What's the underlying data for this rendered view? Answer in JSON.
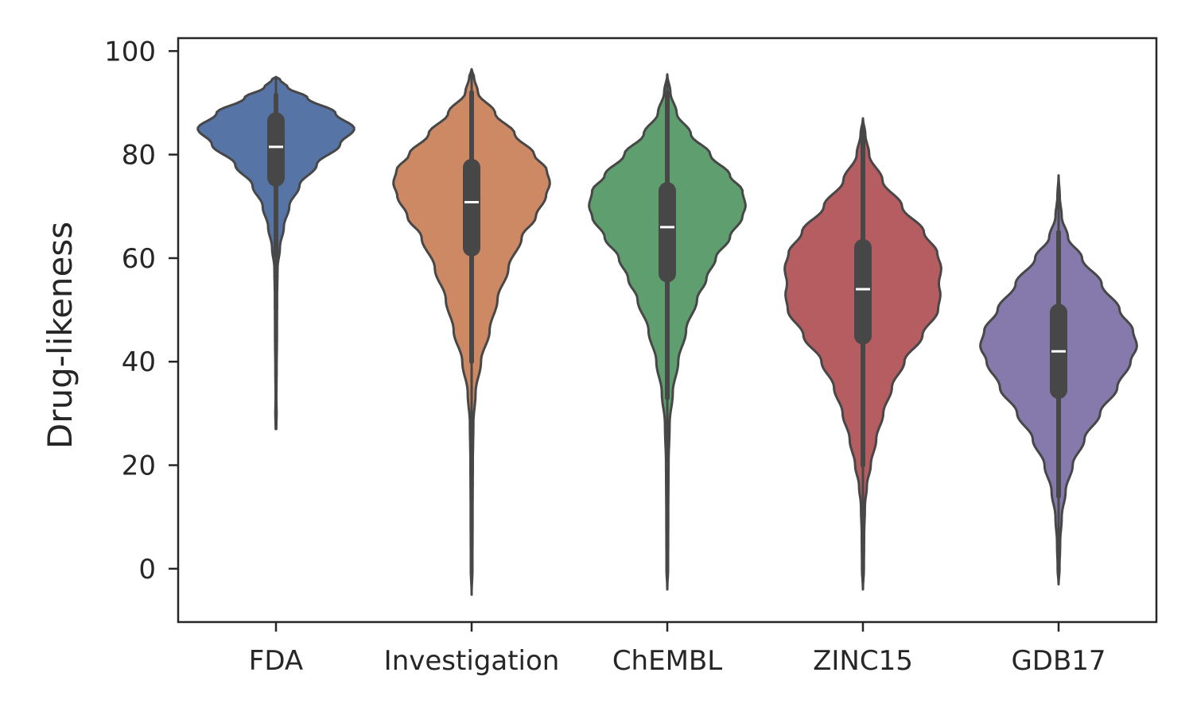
{
  "chart_data": {
    "type": "violin",
    "categories": [
      "FDA",
      "Investigation",
      "ChEMBL",
      "ZINC15",
      "GDB17"
    ],
    "xlabel": "",
    "ylabel": "Drug-likeness",
    "ylim": [
      -10.3,
      102.5
    ],
    "yticks": [
      0,
      20,
      40,
      60,
      80,
      100
    ],
    "grid": false,
    "colors": [
      "#5675a6",
      "#cc8963",
      "#5f9e6e",
      "#b55d60",
      "#857aab"
    ],
    "series": [
      {
        "category": "FDA",
        "min": 27,
        "max": 95,
        "whisker_low": 60.5,
        "whisker_high": 91.5,
        "q1": 75.5,
        "median": 81.5,
        "q3": 86.5,
        "density": [
          [
            27,
            0.004
          ],
          [
            30,
            0.008
          ],
          [
            33,
            0.005
          ],
          [
            38,
            0.008
          ],
          [
            45,
            0.012
          ],
          [
            52,
            0.014
          ],
          [
            58,
            0.02
          ],
          [
            62,
            0.05
          ],
          [
            66,
            0.1
          ],
          [
            70,
            0.17
          ],
          [
            74,
            0.3
          ],
          [
            78,
            0.52
          ],
          [
            82,
            0.82
          ],
          [
            85,
            1.0
          ],
          [
            88,
            0.76
          ],
          [
            91,
            0.4
          ],
          [
            93,
            0.15
          ],
          [
            94.5,
            0.05
          ],
          [
            95,
            0
          ]
        ]
      },
      {
        "category": "Investigation",
        "min": -5,
        "max": 96.5,
        "whisker_low": 40,
        "whisker_high": 92,
        "q1": 62,
        "median": 70.8,
        "q3": 77.5,
        "density": [
          [
            -5,
            0
          ],
          [
            0,
            0.01
          ],
          [
            10,
            0.012
          ],
          [
            20,
            0.015
          ],
          [
            28,
            0.022
          ],
          [
            34,
            0.05
          ],
          [
            40,
            0.12
          ],
          [
            46,
            0.23
          ],
          [
            52,
            0.33
          ],
          [
            58,
            0.47
          ],
          [
            64,
            0.64
          ],
          [
            68,
            0.82
          ],
          [
            72,
            0.95
          ],
          [
            74.5,
            1.0
          ],
          [
            77,
            0.96
          ],
          [
            80,
            0.8
          ],
          [
            84,
            0.55
          ],
          [
            88,
            0.3
          ],
          [
            92,
            0.08
          ],
          [
            95,
            0.03
          ],
          [
            96.5,
            0
          ]
        ]
      },
      {
        "category": "ChEMBL",
        "min": -4,
        "max": 95.5,
        "whisker_low": 33,
        "whisker_high": 92,
        "q1": 57,
        "median": 66,
        "q3": 73,
        "density": [
          [
            -4,
            0
          ],
          [
            0,
            0.01
          ],
          [
            10,
            0.012
          ],
          [
            20,
            0.016
          ],
          [
            28,
            0.03
          ],
          [
            34,
            0.07
          ],
          [
            40,
            0.14
          ],
          [
            46,
            0.24
          ],
          [
            52,
            0.38
          ],
          [
            56,
            0.5
          ],
          [
            60,
            0.62
          ],
          [
            64,
            0.8
          ],
          [
            68,
            0.96
          ],
          [
            70,
            1.0
          ],
          [
            73,
            0.96
          ],
          [
            76,
            0.8
          ],
          [
            80,
            0.55
          ],
          [
            84,
            0.3
          ],
          [
            88,
            0.12
          ],
          [
            92,
            0.04
          ],
          [
            95.5,
            0
          ]
        ]
      },
      {
        "category": "ZINC15",
        "min": -4,
        "max": 87,
        "whisker_low": 20,
        "whisker_high": 84,
        "q1": 45,
        "median": 54,
        "q3": 62,
        "density": [
          [
            -4,
            0
          ],
          [
            0,
            0.012
          ],
          [
            6,
            0.015
          ],
          [
            12,
            0.025
          ],
          [
            16,
            0.05
          ],
          [
            20,
            0.1
          ],
          [
            25,
            0.17
          ],
          [
            30,
            0.26
          ],
          [
            35,
            0.37
          ],
          [
            40,
            0.53
          ],
          [
            45,
            0.76
          ],
          [
            50,
            0.96
          ],
          [
            53,
            0.99
          ],
          [
            55,
            0.97
          ],
          [
            58,
            1.0
          ],
          [
            61,
            0.95
          ],
          [
            65,
            0.78
          ],
          [
            70,
            0.5
          ],
          [
            75,
            0.25
          ],
          [
            80,
            0.08
          ],
          [
            84,
            0.03
          ],
          [
            87,
            0
          ]
        ]
      },
      {
        "category": "GDB17",
        "min": -3,
        "max": 76,
        "whisker_low": 14,
        "whisker_high": 65,
        "q1": 34.5,
        "median": 42,
        "q3": 49.5,
        "density": [
          [
            -3,
            0
          ],
          [
            0,
            0.012
          ],
          [
            5,
            0.02
          ],
          [
            10,
            0.04
          ],
          [
            15,
            0.09
          ],
          [
            20,
            0.18
          ],
          [
            25,
            0.33
          ],
          [
            30,
            0.53
          ],
          [
            35,
            0.75
          ],
          [
            40,
            0.92
          ],
          [
            43,
            1.0
          ],
          [
            46,
            0.95
          ],
          [
            50,
            0.78
          ],
          [
            55,
            0.55
          ],
          [
            60,
            0.3
          ],
          [
            64,
            0.12
          ],
          [
            68,
            0.04
          ],
          [
            72,
            0.015
          ],
          [
            76,
            0
          ]
        ]
      }
    ]
  }
}
